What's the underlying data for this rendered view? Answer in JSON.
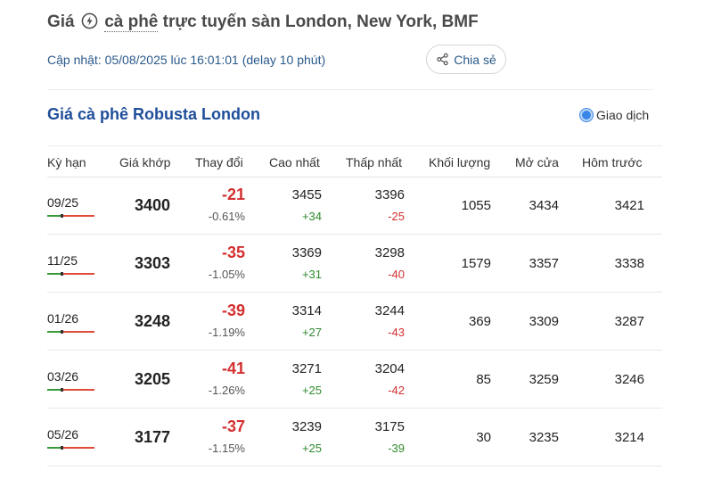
{
  "header": {
    "title_prefix": "Giá",
    "title_link": "cà phê",
    "title_suffix": "trực tuyến sàn London, New York, BMF",
    "update_text": "Cập nhật: 05/08/2025 lúc 16:01:01 (delay 10 phút)",
    "share_label": "Chia sẻ"
  },
  "section": {
    "title": "Giá cà phê Robusta London",
    "toggle_label": "Giao dịch"
  },
  "table": {
    "columns": [
      "Kỳ hạn",
      "Giá khớp",
      "Thay đổi",
      "Cao nhất",
      "Thấp nhất",
      "Khối lượng",
      "Mở cửa",
      "Hôm trước"
    ],
    "rows": [
      {
        "term": "09/25",
        "price": "3400",
        "change": "-21",
        "change_pct": "-0.61%",
        "high": "3455",
        "high_diff": "+34",
        "low": "3396",
        "low_diff": "-25",
        "volume": "1055",
        "open": "3434",
        "prev": "3421"
      },
      {
        "term": "11/25",
        "price": "3303",
        "change": "-35",
        "change_pct": "-1.05%",
        "high": "3369",
        "high_diff": "+31",
        "low": "3298",
        "low_diff": "-40",
        "volume": "1579",
        "open": "3357",
        "prev": "3338"
      },
      {
        "term": "01/26",
        "price": "3248",
        "change": "-39",
        "change_pct": "-1.19%",
        "high": "3314",
        "high_diff": "+27",
        "low": "3244",
        "low_diff": "-43",
        "volume": "369",
        "open": "3309",
        "prev": "3287"
      },
      {
        "term": "03/26",
        "price": "3205",
        "change": "-41",
        "change_pct": "-1.26%",
        "high": "3271",
        "high_diff": "+25",
        "low": "3204",
        "low_diff": "-42",
        "volume": "85",
        "open": "3259",
        "prev": "3246"
      },
      {
        "term": "05/26",
        "price": "3177",
        "change": "-37",
        "change_pct": "-1.15%",
        "high": "3239",
        "high_diff": "+25",
        "low": "3175",
        "low_diff": "-39",
        "volume": "30",
        "open": "3235",
        "prev": "3214"
      }
    ]
  },
  "colors": {
    "accent_blue": "#1f4e9a",
    "down_red": "#d32f2f",
    "up_green": "#2e8b2e"
  },
  "icons": {
    "bolt": "bolt-icon",
    "share": "share-icon",
    "radio": "radio-selected-icon"
  }
}
